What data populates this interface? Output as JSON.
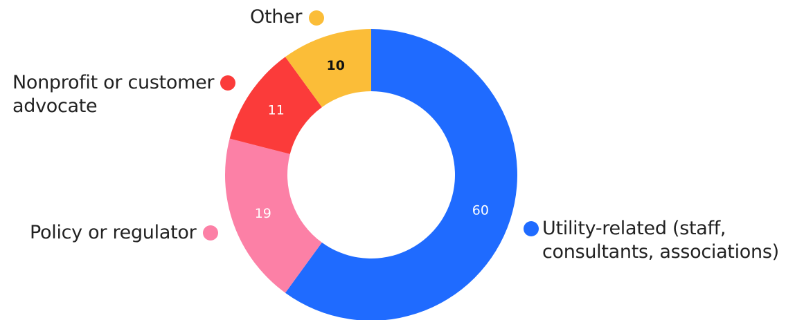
{
  "chart_data": {
    "type": "pie",
    "donut": true,
    "title": "",
    "categories": [
      "Utility-related (staff,\nconsultants, associations)",
      "Policy or regulator",
      "Nonprofit or customer\nadvocate",
      "Other"
    ],
    "values": [
      60,
      19,
      11,
      10
    ],
    "colors": [
      "#1f6bff",
      "#fc80a6",
      "#fb3b3a",
      "#fbbd38"
    ],
    "label_colors": [
      "#ffffff",
      "#ffffff",
      "#ffffff",
      "#111111"
    ],
    "legend_placement": "around"
  }
}
